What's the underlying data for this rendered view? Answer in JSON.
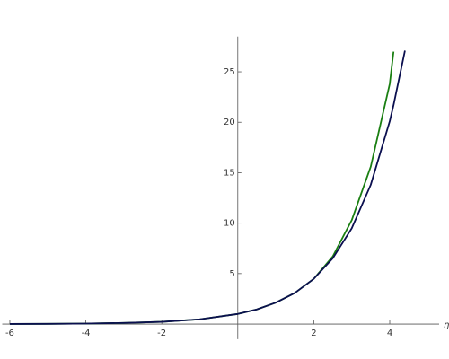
{
  "chart_data": {
    "type": "line",
    "x_label": "η",
    "x": [
      -6,
      -5,
      -4,
      -3,
      -2,
      -1,
      0,
      0.5,
      1,
      1.5,
      2,
      2.5,
      3,
      3.5,
      4,
      4.1,
      4.4
    ],
    "series": [
      {
        "color": "#1a7f12",
        "values": [
          0.01,
          0.02,
          0.05,
          0.11,
          0.22,
          0.47,
          1,
          1.45,
          2.12,
          3.08,
          4.48,
          6.7,
          10.3,
          15.6,
          23.8,
          27,
          null
        ]
      },
      {
        "color": "#0b0f4f",
        "values": [
          0.01,
          0.02,
          0.05,
          0.11,
          0.22,
          0.47,
          1,
          1.45,
          2.12,
          3.08,
          4.48,
          6.52,
          9.49,
          13.8,
          20.1,
          21.7,
          27.1
        ]
      }
    ],
    "xlim": [
      -6.2,
      5.3
    ],
    "ylim": [
      -1.5,
      28.5
    ],
    "xticks": [
      -6,
      -4,
      -2,
      2,
      4
    ],
    "yticks": [
      5,
      10,
      15,
      20,
      25
    ]
  }
}
